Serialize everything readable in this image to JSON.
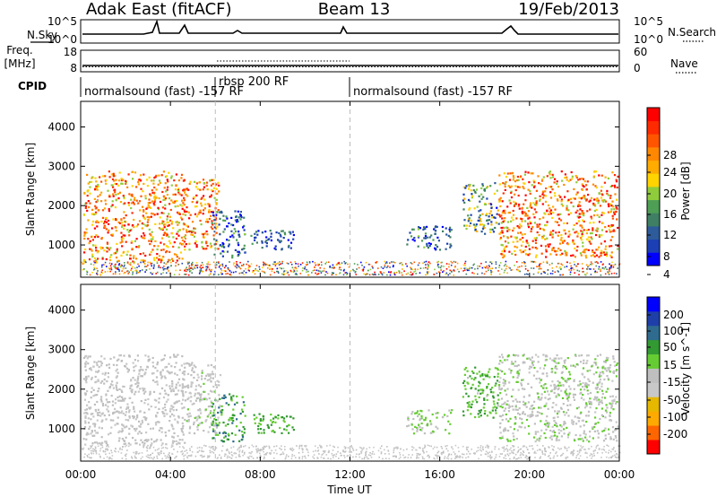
{
  "header": {
    "left": "Adak East (fitACF)",
    "center": "Beam 13",
    "right": "19/Feb/2013"
  },
  "panels": {
    "noise": {
      "left_label": "N.Sky",
      "right_label": "N.Search",
      "left_ticks": [
        "10^5",
        "10^0"
      ],
      "right_ticks": [
        "10^5",
        "10^0"
      ]
    },
    "freq": {
      "left_label_1": "Freq.",
      "left_label_2": "[MHz]",
      "right_label": "Nave",
      "left_ticks": [
        "18",
        "8"
      ],
      "right_ticks": [
        "60",
        "0"
      ]
    },
    "cpid": {
      "label": "CPID",
      "segments": [
        {
          "text": "normalsound (fast) -157 RF",
          "start_h": 0
        },
        {
          "text": "rbsp 200 RF",
          "start_h": 6
        },
        {
          "text": "normalsound (fast) -157 RF",
          "start_h": 12
        }
      ]
    }
  },
  "colorbars": {
    "power": {
      "label": "Power [dB]",
      "ticks": [
        "28",
        "24",
        "20",
        "16",
        "12",
        "8",
        "4"
      ],
      "colors": [
        "#0000ff",
        "#1c3fb5",
        "#2e5b9a",
        "#3f7f63",
        "#4f9e56",
        "#8fcc3c",
        "#ffd400",
        "#ffab00",
        "#ff8800",
        "#ff5500",
        "#ff2a00",
        "#ff0000"
      ]
    },
    "velocity": {
      "label": "Velocity [m s^-1]",
      "ticks": [
        "200",
        "100",
        "50",
        "15",
        "-15",
        "-50",
        "-100",
        "-200"
      ],
      "colors": [
        "#ff0000",
        "#ff6600",
        "#ffaa00",
        "#e6b800",
        "#c8c8c8",
        "#bfbfbf",
        "#66cc33",
        "#339933",
        "#2e6b8f",
        "#1f3fa8",
        "#0000ff"
      ]
    }
  },
  "chart_data": [
    {
      "type": "heatmap",
      "name": "power",
      "xlabel": "",
      "ylabel": "Slant Range [km]",
      "ylim": [
        180,
        4650
      ],
      "yticks": [
        1000,
        2000,
        3000,
        4000
      ],
      "xlim_hours": [
        0,
        24
      ],
      "xticks": [],
      "gap_lines_h": [
        6,
        12
      ],
      "colorbar": "power",
      "regions": [
        {
          "t0": 0.1,
          "t1": 4.6,
          "r0": 600,
          "r1": 2900,
          "min": 14,
          "max": 30
        },
        {
          "t0": 4.5,
          "t1": 6.2,
          "r0": 900,
          "r1": 2700,
          "min": 14,
          "max": 30
        },
        {
          "t0": 5.8,
          "t1": 7.3,
          "r0": 700,
          "r1": 1900,
          "min": 2,
          "max": 14
        },
        {
          "t0": 7.5,
          "t1": 9.5,
          "r0": 900,
          "r1": 1400,
          "min": 2,
          "max": 12
        },
        {
          "t0": 14.5,
          "t1": 16.5,
          "r0": 900,
          "r1": 1500,
          "min": 2,
          "max": 14
        },
        {
          "t0": 17.0,
          "t1": 18.6,
          "r0": 1300,
          "r1": 2600,
          "min": 4,
          "max": 20
        },
        {
          "t0": 18.6,
          "t1": 23.9,
          "r0": 700,
          "r1": 2900,
          "min": 14,
          "max": 30
        }
      ],
      "ground": {
        "r0": 250,
        "r1": 600,
        "min": 2,
        "max": 30
      }
    },
    {
      "type": "heatmap",
      "name": "velocity",
      "xlabel": "Time UT",
      "ylabel": "Slant Range [km]",
      "ylim": [
        180,
        4650
      ],
      "yticks": [
        1000,
        2000,
        3000,
        4000
      ],
      "xlim_hours": [
        0,
        24
      ],
      "xticks": [
        "00:00",
        "04:00",
        "08:00",
        "12:00",
        "16:00",
        "20:00",
        "00:00"
      ],
      "gap_lines_h": [
        6,
        12
      ],
      "colorbar": "velocity",
      "regions": [
        {
          "t0": 0.1,
          "t1": 4.6,
          "r0": 600,
          "r1": 2900,
          "min": -40,
          "max": 20
        },
        {
          "t0": 4.5,
          "t1": 6.2,
          "r0": 900,
          "r1": 2700,
          "min": -50,
          "max": 30
        },
        {
          "t0": 5.8,
          "t1": 7.3,
          "r0": 700,
          "r1": 1900,
          "min": 20,
          "max": 120
        },
        {
          "t0": 7.5,
          "t1": 9.5,
          "r0": 900,
          "r1": 1400,
          "min": 20,
          "max": 100
        },
        {
          "t0": 14.5,
          "t1": 16.5,
          "r0": 900,
          "r1": 1500,
          "min": -15,
          "max": 60
        },
        {
          "t0": 17.0,
          "t1": 18.6,
          "r0": 1300,
          "r1": 2600,
          "min": 15,
          "max": 100
        },
        {
          "t0": 18.6,
          "t1": 23.9,
          "r0": 700,
          "r1": 2900,
          "min": -30,
          "max": 40
        }
      ],
      "ground": {
        "r0": 250,
        "r1": 600,
        "min": -60,
        "max": 15
      }
    }
  ]
}
